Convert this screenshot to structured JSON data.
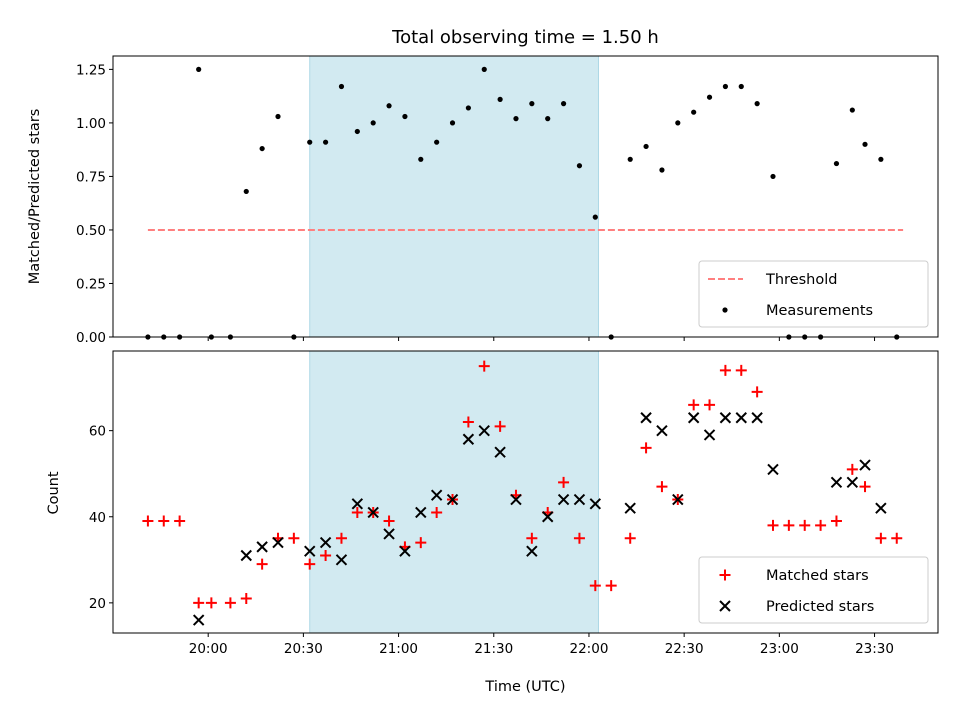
{
  "chart_data": [
    {
      "type": "scatter",
      "title": "Total observing time = 1.50 h",
      "ylabel": "Matched/Predicted stars",
      "xlabel": "",
      "ylim": [
        0,
        1.3125
      ],
      "yticks": [
        "0.00",
        "0.25",
        "0.50",
        "0.75",
        "1.00",
        "1.25"
      ],
      "ytick_values": [
        0,
        0.25,
        0.5,
        0.75,
        1.0,
        1.25
      ],
      "x_unit": "minutes after 19:30 UTC",
      "xlim": [
        0,
        260
      ],
      "shaded_span": [
        62,
        153
      ],
      "threshold": {
        "name": "Threshold",
        "value": 0.5,
        "x_range": [
          11,
          249
        ],
        "color": "#ff7f7f",
        "style": "dashed"
      },
      "legend": {
        "placement": "lower right",
        "entries": [
          "Threshold",
          "Measurements"
        ]
      },
      "series": [
        {
          "name": "Measurements",
          "color": "#000000",
          "marker": "dot",
          "points": [
            [
              11,
              0
            ],
            [
              16,
              0
            ],
            [
              21,
              0
            ],
            [
              27,
              1.25
            ],
            [
              31,
              0
            ],
            [
              37,
              0
            ],
            [
              42,
              0.68
            ],
            [
              47,
              0.88
            ],
            [
              52,
              1.03
            ],
            [
              57,
              0
            ],
            [
              62,
              0.91
            ],
            [
              67,
              0.91
            ],
            [
              72,
              1.17
            ],
            [
              77,
              0.96
            ],
            [
              82,
              1.0
            ],
            [
              87,
              1.08
            ],
            [
              92,
              1.03
            ],
            [
              97,
              0.83
            ],
            [
              102,
              0.91
            ],
            [
              107,
              1.0
            ],
            [
              112,
              1.07
            ],
            [
              117,
              1.25
            ],
            [
              122,
              1.11
            ],
            [
              127,
              1.02
            ],
            [
              132,
              1.09
            ],
            [
              137,
              1.02
            ],
            [
              142,
              1.09
            ],
            [
              147,
              0.8
            ],
            [
              152,
              0.56
            ],
            [
              157,
              0
            ],
            [
              163,
              0.83
            ],
            [
              168,
              0.89
            ],
            [
              173,
              0.78
            ],
            [
              178,
              1.0
            ],
            [
              183,
              1.05
            ],
            [
              188,
              1.12
            ],
            [
              193,
              1.17
            ],
            [
              198,
              1.17
            ],
            [
              203,
              1.09
            ],
            [
              208,
              0.75
            ],
            [
              213,
              0
            ],
            [
              218,
              0
            ],
            [
              223,
              0
            ],
            [
              228,
              0.81
            ],
            [
              233,
              1.06
            ],
            [
              237,
              0.9
            ],
            [
              242,
              0.83
            ],
            [
              247,
              0
            ]
          ]
        }
      ]
    },
    {
      "type": "scatter",
      "title": "",
      "ylabel": "Count",
      "xlabel": "Time (UTC)",
      "ylim": [
        13,
        78.5
      ],
      "yticks": [
        "20",
        "40",
        "60"
      ],
      "ytick_values": [
        20,
        40,
        60
      ],
      "x_unit": "minutes after 19:30 UTC",
      "xlim": [
        0,
        260
      ],
      "xticks": [
        "20:00",
        "20:30",
        "21:00",
        "21:30",
        "22:00",
        "22:30",
        "23:00",
        "23:30"
      ],
      "xtick_values": [
        30,
        60,
        90,
        120,
        150,
        180,
        210,
        240
      ],
      "shaded_span": [
        62,
        153
      ],
      "legend": {
        "placement": "lower right",
        "entries": [
          "Matched stars",
          "Predicted stars"
        ]
      },
      "series": [
        {
          "name": "Matched stars",
          "color": "#ff0000",
          "marker": "+",
          "points": [
            [
              11,
              39
            ],
            [
              16,
              39
            ],
            [
              21,
              39
            ],
            [
              27,
              20
            ],
            [
              31,
              20
            ],
            [
              37,
              20
            ],
            [
              42,
              21
            ],
            [
              47,
              29
            ],
            [
              52,
              35
            ],
            [
              57,
              35
            ],
            [
              62,
              29
            ],
            [
              67,
              31
            ],
            [
              72,
              35
            ],
            [
              77,
              41
            ],
            [
              82,
              41
            ],
            [
              87,
              39
            ],
            [
              92,
              33
            ],
            [
              97,
              34
            ],
            [
              102,
              41
            ],
            [
              107,
              44
            ],
            [
              112,
              62
            ],
            [
              117,
              75
            ],
            [
              122,
              61
            ],
            [
              127,
              45
            ],
            [
              132,
              35
            ],
            [
              137,
              41
            ],
            [
              142,
              48
            ],
            [
              147,
              35
            ],
            [
              152,
              24
            ],
            [
              157,
              24
            ],
            [
              163,
              35
            ],
            [
              168,
              56
            ],
            [
              173,
              47
            ],
            [
              178,
              44
            ],
            [
              183,
              66
            ],
            [
              188,
              66
            ],
            [
              193,
              74
            ],
            [
              198,
              74
            ],
            [
              203,
              69
            ],
            [
              208,
              38
            ],
            [
              213,
              38
            ],
            [
              218,
              38
            ],
            [
              223,
              38
            ],
            [
              228,
              39
            ],
            [
              233,
              51
            ],
            [
              237,
              47
            ],
            [
              242,
              35
            ],
            [
              247,
              35
            ]
          ]
        },
        {
          "name": "Predicted stars",
          "color": "#000000",
          "marker": "x",
          "points": [
            [
              27,
              16
            ],
            [
              42,
              31
            ],
            [
              47,
              33
            ],
            [
              52,
              34
            ],
            [
              62,
              32
            ],
            [
              67,
              34
            ],
            [
              72,
              30
            ],
            [
              77,
              43
            ],
            [
              82,
              41
            ],
            [
              87,
              36
            ],
            [
              92,
              32
            ],
            [
              97,
              41
            ],
            [
              102,
              45
            ],
            [
              107,
              44
            ],
            [
              112,
              58
            ],
            [
              117,
              60
            ],
            [
              122,
              55
            ],
            [
              127,
              44
            ],
            [
              132,
              32
            ],
            [
              137,
              40
            ],
            [
              142,
              44
            ],
            [
              147,
              44
            ],
            [
              152,
              43
            ],
            [
              163,
              42
            ],
            [
              168,
              63
            ],
            [
              173,
              60
            ],
            [
              178,
              44
            ],
            [
              183,
              63
            ],
            [
              188,
              59
            ],
            [
              193,
              63
            ],
            [
              198,
              63
            ],
            [
              203,
              63
            ],
            [
              208,
              51
            ],
            [
              228,
              48
            ],
            [
              233,
              48
            ],
            [
              237,
              52
            ],
            [
              242,
              42
            ]
          ]
        }
      ]
    }
  ],
  "shade_color": "#add8e6"
}
